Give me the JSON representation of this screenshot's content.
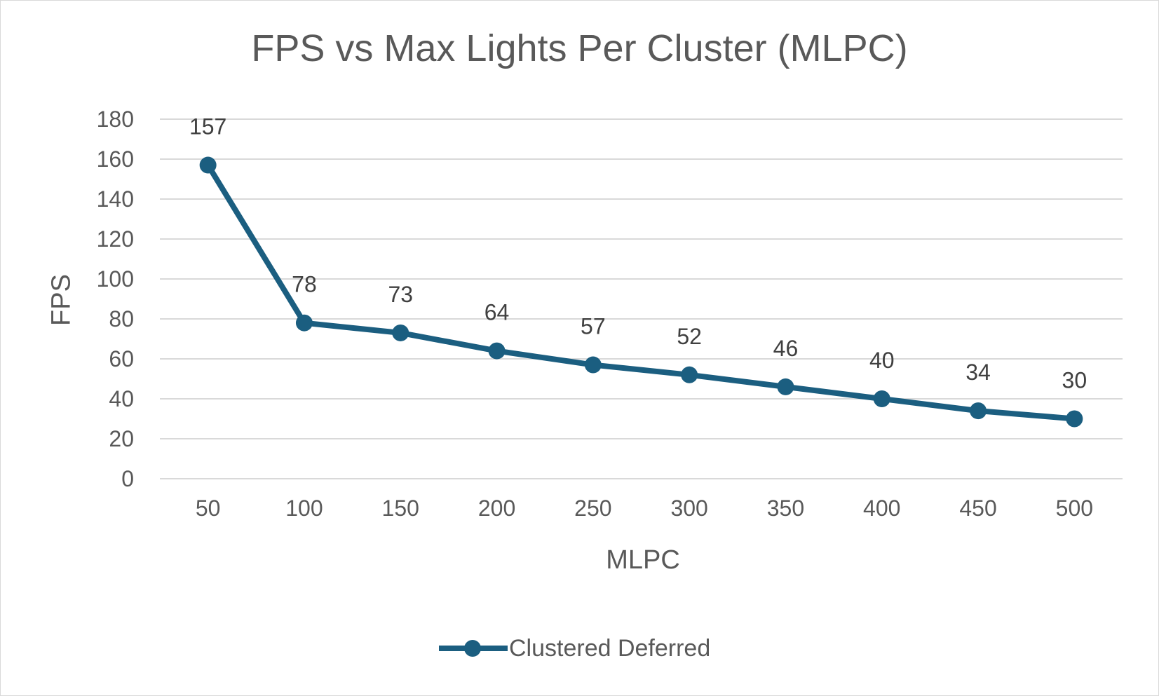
{
  "chart_data": {
    "type": "line",
    "title": "FPS vs Max Lights Per Cluster (MLPC)",
    "xlabel": "MLPC",
    "ylabel": "FPS",
    "categories": [
      "50",
      "100",
      "150",
      "200",
      "250",
      "300",
      "350",
      "400",
      "450",
      "500"
    ],
    "series": [
      {
        "name": "Clustered Deferred",
        "values": [
          157,
          78,
          73,
          64,
          57,
          52,
          46,
          40,
          34,
          30
        ],
        "color": "#1b5e80"
      }
    ],
    "ylim": [
      0,
      180
    ],
    "yticks": [
      "0",
      "20",
      "40",
      "60",
      "80",
      "100",
      "120",
      "140",
      "160",
      "180"
    ],
    "grid": true,
    "data_labels": true,
    "legend": "bottom"
  }
}
